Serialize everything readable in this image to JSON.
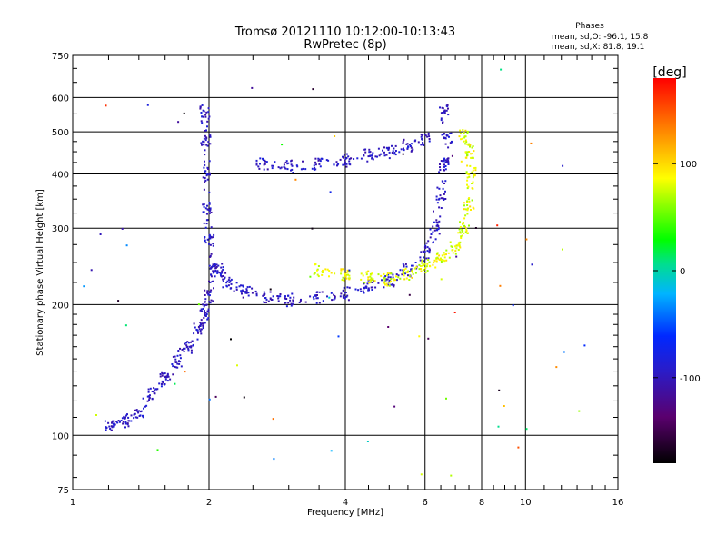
{
  "chart_data": {
    "type": "scatter",
    "title": "Tromsø 20121110 10:12:00-10:13:43",
    "subtitle": "RwPretec (8p)",
    "xlabel": "Frequency [MHz]",
    "ylabel": "Stationary phase Virtual Height [km]",
    "x_scale": "log",
    "y_scale": "log",
    "xlim": [
      1,
      16
    ],
    "ylim": [
      75,
      750
    ],
    "x_ticks": [
      1,
      2,
      4,
      6,
      8,
      10,
      16
    ],
    "y_ticks": [
      75,
      100,
      200,
      300,
      400,
      500,
      600,
      750
    ],
    "grid": true,
    "stats": {
      "heading": "Phases",
      "o_line": "mean, sd,O: -96.1, 15.8",
      "x_line": "mean, sd,X: 81.8, 19.1"
    },
    "colorbar": {
      "title": "[deg]",
      "range": [
        -180,
        180
      ],
      "ticks": [
        100,
        0,
        -100
      ]
    },
    "series": [
      {
        "name": "O",
        "phase_mean": -96.1,
        "phase_sd": 15.8,
        "description_points": [
          {
            "x": 1.2,
            "y": 105
          },
          {
            "x": 1.3,
            "y": 108
          },
          {
            "x": 1.4,
            "y": 112
          },
          {
            "x": 1.5,
            "y": 125
          },
          {
            "x": 1.6,
            "y": 135
          },
          {
            "x": 1.7,
            "y": 148
          },
          {
            "x": 1.8,
            "y": 160
          },
          {
            "x": 1.9,
            "y": 175
          },
          {
            "x": 1.95,
            "y": 190
          },
          {
            "x": 2.0,
            "y": 210
          },
          {
            "x": 2.05,
            "y": 240
          },
          {
            "x": 2.0,
            "y": 280
          },
          {
            "x": 1.98,
            "y": 330
          },
          {
            "x": 1.97,
            "y": 400
          },
          {
            "x": 1.97,
            "y": 480
          },
          {
            "x": 1.96,
            "y": 560
          },
          {
            "x": 2.1,
            "y": 240
          },
          {
            "x": 2.2,
            "y": 225
          },
          {
            "x": 2.4,
            "y": 215
          },
          {
            "x": 2.7,
            "y": 208
          },
          {
            "x": 3.0,
            "y": 205
          },
          {
            "x": 3.5,
            "y": 207
          },
          {
            "x": 4.0,
            "y": 212
          },
          {
            "x": 4.5,
            "y": 220
          },
          {
            "x": 5.0,
            "y": 228
          },
          {
            "x": 5.5,
            "y": 240
          },
          {
            "x": 6.0,
            "y": 262
          },
          {
            "x": 6.3,
            "y": 300
          },
          {
            "x": 6.5,
            "y": 360
          },
          {
            "x": 6.6,
            "y": 420
          },
          {
            "x": 6.7,
            "y": 480
          },
          {
            "x": 6.6,
            "y": 560
          },
          {
            "x": 2.6,
            "y": 420
          },
          {
            "x": 3.0,
            "y": 415
          },
          {
            "x": 3.5,
            "y": 420
          },
          {
            "x": 4.0,
            "y": 430
          },
          {
            "x": 4.5,
            "y": 440
          },
          {
            "x": 5.0,
            "y": 450
          },
          {
            "x": 5.5,
            "y": 465
          },
          {
            "x": 6.0,
            "y": 480
          }
        ]
      },
      {
        "name": "X",
        "phase_mean": 81.8,
        "phase_sd": 19.1,
        "description_points": [
          {
            "x": 3.5,
            "y": 240
          },
          {
            "x": 4.0,
            "y": 235
          },
          {
            "x": 4.5,
            "y": 232
          },
          {
            "x": 5.0,
            "y": 228
          },
          {
            "x": 5.5,
            "y": 235
          },
          {
            "x": 6.0,
            "y": 245
          },
          {
            "x": 6.5,
            "y": 255
          },
          {
            "x": 7.0,
            "y": 270
          },
          {
            "x": 7.3,
            "y": 300
          },
          {
            "x": 7.5,
            "y": 340
          },
          {
            "x": 7.6,
            "y": 400
          },
          {
            "x": 7.5,
            "y": 450
          },
          {
            "x": 7.3,
            "y": 490
          }
        ]
      }
    ]
  }
}
